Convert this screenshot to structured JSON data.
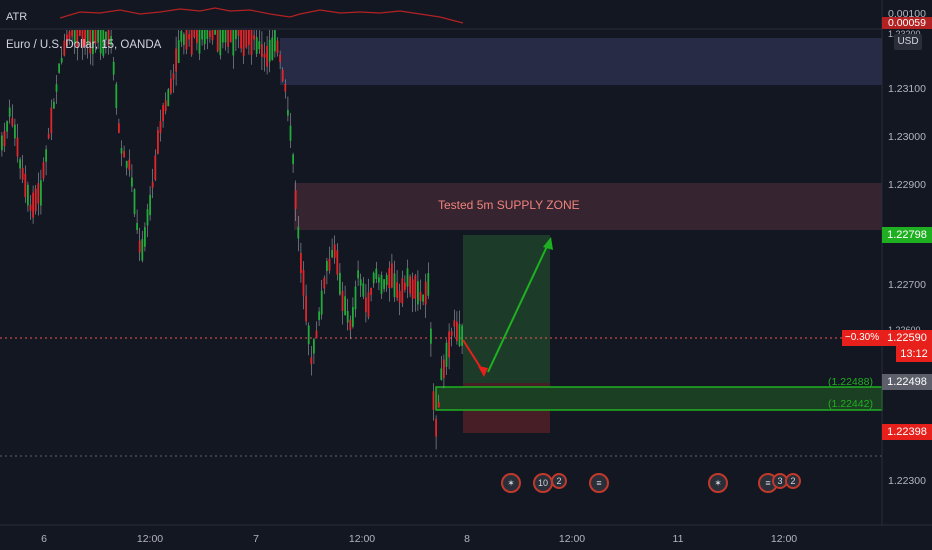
{
  "indicator": {
    "name": "ATR"
  },
  "symbol": {
    "title": "Euro / U.S. Dollar, 15, OANDA"
  },
  "currency_button": "USD",
  "zone_label": "Tested 5m SUPPLY ZONE",
  "price_axis": {
    "atr_values": [
      "0.00100",
      "0.00059"
    ],
    "ticks": [
      "1.23100",
      "1.23000",
      "1.22900",
      "1.22700",
      "1.22300"
    ],
    "partial_top": "1.23200",
    "partial_mid": "1.22600"
  },
  "badges": {
    "target": "1.22798",
    "change_pct": "−0.30%",
    "current": "1.22590",
    "countdown": "13:12",
    "mid": "1.22498",
    "stop": "1.22398"
  },
  "level_labels": [
    "(1.22488)",
    "(1.22442)"
  ],
  "time_axis": [
    "6",
    "12:00",
    "7",
    "12:00",
    "8",
    "12:00",
    "11",
    "12:00"
  ],
  "events": [
    {
      "icon": "eu-flag-icon",
      "count": ""
    },
    {
      "icon": "us-flag-icon",
      "count": "10"
    },
    {
      "icon": "us-flag-icon",
      "count": "2"
    },
    {
      "icon": "us-flag-icon",
      "count": ""
    },
    {
      "icon": "eu-flag-icon",
      "count": ""
    },
    {
      "icon": "us-flag-icon",
      "count": ""
    },
    {
      "icon": "us-flag-icon",
      "count": "3"
    },
    {
      "icon": "us-flag-icon",
      "count": "2"
    }
  ],
  "colors": {
    "background": "#131722",
    "up": "#26a69a",
    "down": "#ef5350",
    "green_candle": "#22ab3a",
    "red_candle": "#e0262a",
    "atr_line": "#b22222",
    "target_badge": "#1fb021",
    "stop_badge": "#e8201b"
  }
}
